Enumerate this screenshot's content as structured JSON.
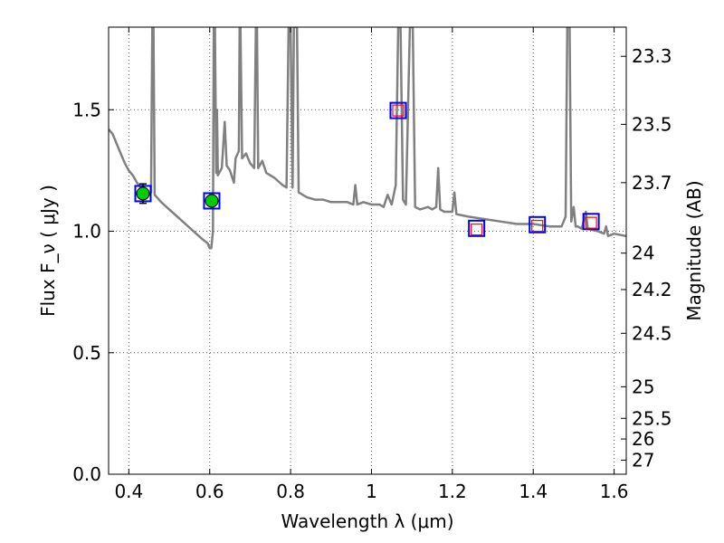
{
  "chart_data": {
    "type": "line",
    "xlabel": "Wavelength  λ (μm)",
    "ylabel": "Flux  F_ν  ( μJy )",
    "ylabel_right": "Magnitude (AB)",
    "xlim": [
      0.35,
      1.63
    ],
    "ylim": [
      0.0,
      1.84
    ],
    "x_ticks": [
      0.4,
      0.6,
      0.8,
      1.0,
      1.2,
      1.4,
      1.6
    ],
    "x_tick_labels": [
      "0.4",
      "0.6",
      "0.8",
      "1",
      "1.2",
      "1.4",
      "1.6"
    ],
    "y_ticks": [
      0.0,
      0.5,
      1.0,
      1.5
    ],
    "y_tick_labels": [
      "0.0",
      "0.5",
      "1.0",
      "1.5"
    ],
    "right_ticks": [
      {
        "label": "23.3",
        "flux": 1.72
      },
      {
        "label": "23.5",
        "flux": 1.44
      },
      {
        "label": "23.7",
        "flux": 1.2
      },
      {
        "label": "24",
        "flux": 0.91
      },
      {
        "label": "24.2",
        "flux": 0.76
      },
      {
        "label": "24.5",
        "flux": 0.58
      },
      {
        "label": "25",
        "flux": 0.36
      },
      {
        "label": "25.5",
        "flux": 0.23
      },
      {
        "label": "26",
        "flux": 0.145
      },
      {
        "label": "27",
        "flux": 0.058
      }
    ],
    "grid": true,
    "colors": {
      "spectrum": "#808080",
      "observed_point": "#00cc00",
      "model_square": "#0000ff",
      "photometry_square": "#ff0000",
      "error_bar": "#000000"
    },
    "spectrum": [
      [
        0.35,
        1.42
      ],
      [
        0.36,
        1.4
      ],
      [
        0.37,
        1.36
      ],
      [
        0.38,
        1.32
      ],
      [
        0.39,
        1.28
      ],
      [
        0.4,
        1.25
      ],
      [
        0.41,
        1.23
      ],
      [
        0.42,
        1.2
      ],
      [
        0.43,
        1.18
      ],
      [
        0.44,
        1.16
      ],
      [
        0.45,
        1.15
      ],
      [
        0.455,
        1.16
      ],
      [
        0.458,
        1.84
      ],
      [
        0.461,
        1.84
      ],
      [
        0.464,
        1.15
      ],
      [
        0.48,
        1.12
      ],
      [
        0.5,
        1.09
      ],
      [
        0.52,
        1.06
      ],
      [
        0.54,
        1.03
      ],
      [
        0.56,
        1.0
      ],
      [
        0.58,
        0.97
      ],
      [
        0.595,
        0.95
      ],
      [
        0.6,
        0.93
      ],
      [
        0.604,
        0.93
      ],
      [
        0.608,
        1.0
      ],
      [
        0.61,
        1.84
      ],
      [
        0.613,
        1.84
      ],
      [
        0.616,
        1.24
      ],
      [
        0.618,
        1.5
      ],
      [
        0.62,
        1.23
      ],
      [
        0.63,
        1.26
      ],
      [
        0.637,
        1.45
      ],
      [
        0.642,
        1.27
      ],
      [
        0.65,
        1.25
      ],
      [
        0.66,
        1.2
      ],
      [
        0.664,
        1.3
      ],
      [
        0.672,
        1.33
      ],
      [
        0.674,
        1.84
      ],
      [
        0.676,
        1.84
      ],
      [
        0.68,
        1.3
      ],
      [
        0.69,
        1.32
      ],
      [
        0.7,
        1.28
      ],
      [
        0.71,
        1.26
      ],
      [
        0.714,
        1.84
      ],
      [
        0.717,
        1.84
      ],
      [
        0.72,
        1.26
      ],
      [
        0.73,
        1.29
      ],
      [
        0.74,
        1.24
      ],
      [
        0.76,
        1.22
      ],
      [
        0.78,
        1.19
      ],
      [
        0.79,
        1.18
      ],
      [
        0.795,
        1.84
      ],
      [
        0.8,
        1.84
      ],
      [
        0.805,
        1.18
      ],
      [
        0.808,
        1.84
      ],
      [
        0.812,
        1.84
      ],
      [
        0.816,
        1.84
      ],
      [
        0.82,
        1.16
      ],
      [
        0.84,
        1.14
      ],
      [
        0.86,
        1.13
      ],
      [
        0.88,
        1.13
      ],
      [
        0.9,
        1.12
      ],
      [
        0.92,
        1.12
      ],
      [
        0.94,
        1.12
      ],
      [
        0.955,
        1.11
      ],
      [
        0.96,
        1.19
      ],
      [
        0.965,
        1.11
      ],
      [
        0.98,
        1.12
      ],
      [
        1.0,
        1.11
      ],
      [
        1.02,
        1.11
      ],
      [
        1.03,
        1.1
      ],
      [
        1.04,
        1.15
      ],
      [
        1.05,
        1.11
      ],
      [
        1.06,
        1.19
      ],
      [
        1.066,
        1.84
      ],
      [
        1.072,
        1.84
      ],
      [
        1.078,
        1.13
      ],
      [
        1.085,
        1.11
      ],
      [
        1.095,
        1.84
      ],
      [
        1.102,
        1.84
      ],
      [
        1.108,
        1.1
      ],
      [
        1.12,
        1.09
      ],
      [
        1.14,
        1.1
      ],
      [
        1.15,
        1.09
      ],
      [
        1.16,
        1.1
      ],
      [
        1.165,
        1.26
      ],
      [
        1.17,
        1.09
      ],
      [
        1.18,
        1.08
      ],
      [
        1.2,
        1.08
      ],
      [
        1.205,
        1.16
      ],
      [
        1.21,
        1.07
      ],
      [
        1.24,
        1.06
      ],
      [
        1.28,
        1.05
      ],
      [
        1.32,
        1.04
      ],
      [
        1.36,
        1.03
      ],
      [
        1.4,
        1.03
      ],
      [
        1.44,
        1.02
      ],
      [
        1.47,
        1.02
      ],
      [
        1.48,
        1.06
      ],
      [
        1.484,
        1.84
      ],
      [
        1.49,
        1.84
      ],
      [
        1.494,
        1.04
      ],
      [
        1.5,
        1.1
      ],
      [
        1.505,
        1.02
      ],
      [
        1.51,
        1.02
      ],
      [
        1.52,
        1.01
      ],
      [
        1.53,
        1.08
      ],
      [
        1.535,
        1.01
      ],
      [
        1.56,
        1.0
      ],
      [
        1.575,
        0.99
      ],
      [
        1.58,
        1.02
      ],
      [
        1.585,
        0.98
      ],
      [
        1.6,
        0.99
      ],
      [
        1.63,
        0.98
      ]
    ],
    "observed_points": [
      {
        "x": 0.435,
        "y": 1.155,
        "err": 0.04
      },
      {
        "x": 0.605,
        "y": 1.125,
        "err": 0.02
      }
    ],
    "model_squares": [
      {
        "x": 0.435,
        "y": 1.155
      },
      {
        "x": 0.605,
        "y": 1.125
      },
      {
        "x": 1.066,
        "y": 1.497
      },
      {
        "x": 1.26,
        "y": 1.012
      },
      {
        "x": 1.41,
        "y": 1.027
      },
      {
        "x": 1.543,
        "y": 1.04
      }
    ],
    "photometry_squares": [
      {
        "x": 1.066,
        "y": 1.497
      },
      {
        "x": 1.26,
        "y": 1.007
      },
      {
        "x": 1.41,
        "y": 1.022
      },
      {
        "x": 1.543,
        "y": 1.035
      }
    ]
  }
}
